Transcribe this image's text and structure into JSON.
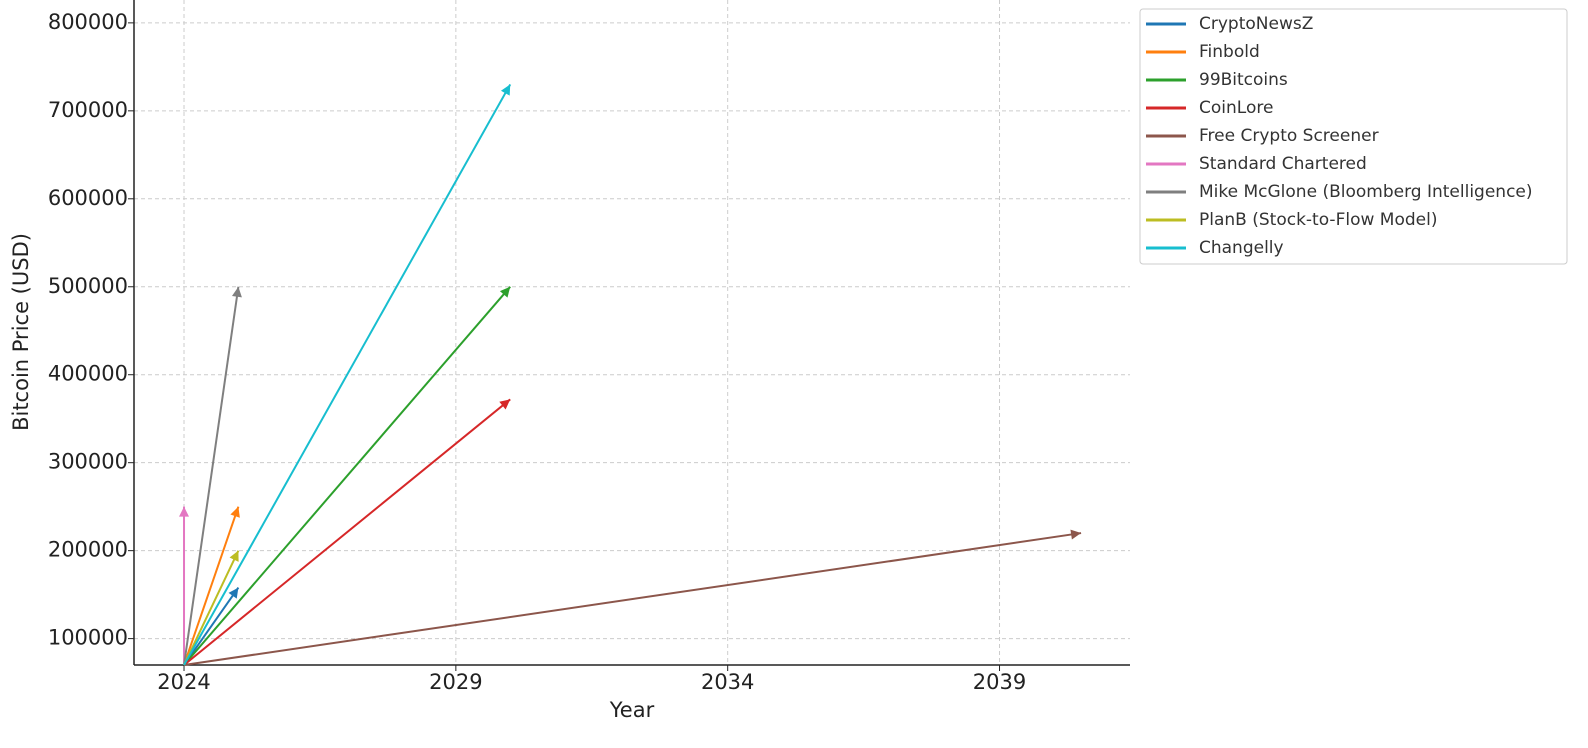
{
  "chart_data": {
    "type": "line",
    "x_label": "Year",
    "y_label": "Bitcoin Price (USD)",
    "xlim": [
      2023.08,
      2041.4
    ],
    "ylim": [
      70000,
      826000
    ],
    "xticks": [
      2024,
      2029,
      2034,
      2039
    ],
    "yticks": [
      100000,
      200000,
      300000,
      400000,
      500000,
      600000,
      700000,
      800000
    ],
    "grid": true,
    "legend": "outside upper right",
    "series": [
      {
        "name": "CryptoNewsZ",
        "color": "#1f77b4",
        "x": [
          2024,
          2025
        ],
        "values": [
          70000,
          158000
        ]
      },
      {
        "name": "Finbold",
        "color": "#ff7f0e",
        "x": [
          2024,
          2025
        ],
        "values": [
          70000,
          250000
        ]
      },
      {
        "name": "99Bitcoins",
        "color": "#2ca02c",
        "x": [
          2024,
          2030
        ],
        "values": [
          70000,
          500000
        ]
      },
      {
        "name": "CoinLore",
        "color": "#d62728",
        "x": [
          2024,
          2030
        ],
        "values": [
          70000,
          372000
        ]
      },
      {
        "name": "Free Crypto Screener",
        "color": "#8c564b",
        "x": [
          2024,
          2040.5
        ],
        "values": [
          70000,
          220000
        ]
      },
      {
        "name": "Standard Chartered",
        "color": "#e377c2",
        "x": [
          2024,
          2024
        ],
        "values": [
          70000,
          250000
        ]
      },
      {
        "name": "Mike McGlone (Bloomberg Intelligence)",
        "color": "#7f7f7f",
        "x": [
          2024,
          2025
        ],
        "values": [
          70000,
          500000
        ]
      },
      {
        "name": "PlanB (Stock-to-Flow Model)",
        "color": "#bcbd22",
        "x": [
          2024,
          2025
        ],
        "values": [
          70000,
          200000
        ]
      },
      {
        "name": "Changelly",
        "color": "#17becf",
        "x": [
          2024,
          2030
        ],
        "values": [
          70000,
          730000
        ]
      }
    ]
  }
}
